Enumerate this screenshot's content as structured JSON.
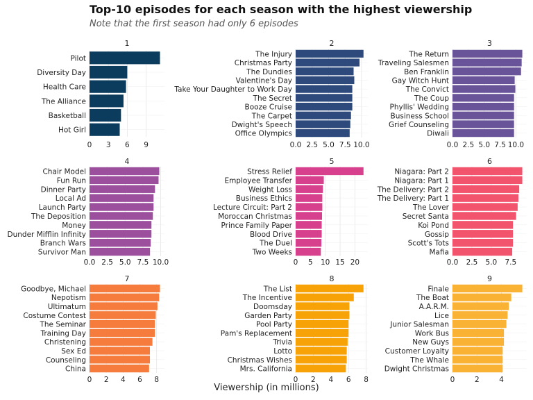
{
  "chart_data": {
    "type": "bar",
    "title": "Top-10 episodes for each season with the highest viewership",
    "subtitle": "Note that the first season had only 6 episodes",
    "xlabel": "Viewership (in millions)",
    "panels": [
      {
        "season": "1",
        "color": "#0b3c5d",
        "xlim": [
          0,
          11.2
        ],
        "ticks": [
          0,
          3,
          6,
          9
        ],
        "tick_labels": [
          "0",
          "3",
          "6",
          "9"
        ],
        "categories": [
          "Pilot",
          "Diversity Day",
          "Health Care",
          "The Alliance",
          "Basketball",
          "Hot Girl"
        ],
        "values": [
          11.2,
          6.0,
          5.8,
          5.4,
          5.0,
          4.8
        ]
      },
      {
        "season": "2",
        "color": "#2e4a7d",
        "xlim": [
          0,
          10.3
        ],
        "ticks": [
          0,
          2.5,
          5,
          7.5,
          10
        ],
        "tick_labels": [
          "0.0",
          "2.5",
          "5.0",
          "7.5",
          "10.0"
        ],
        "categories": [
          "The Injury",
          "Christmas Party",
          "The Dundies",
          "Valentine's Day",
          "Take Your Daughter to Work Day",
          "The Secret",
          "Booze Cruise",
          "The Carpet",
          "Dwight's Speech",
          "Office Olympics"
        ],
        "values": [
          10.3,
          9.7,
          8.8,
          8.9,
          8.6,
          8.6,
          8.6,
          8.4,
          8.3,
          8.2
        ]
      },
      {
        "season": "3",
        "color": "#6a5499",
        "xlim": [
          0,
          11.0
        ],
        "ticks": [
          0,
          2.5,
          5,
          7.5,
          10
        ],
        "tick_labels": [
          "0.0",
          "2.5",
          "5.0",
          "7.5",
          "10.0"
        ],
        "categories": [
          "The Return",
          "Traveling Salesmen",
          "Ben Franklin",
          "Gay Witch Hunt",
          "The Convict",
          "The Coup",
          "Phyllis' Wedding",
          "Business School",
          "Grief Counseling",
          "Diwali"
        ],
        "values": [
          11.0,
          10.9,
          10.8,
          9.8,
          9.9,
          9.7,
          9.7,
          9.7,
          9.7,
          9.7
        ]
      },
      {
        "season": "4",
        "color": "#9b4f9d",
        "xlim": [
          0,
          9.9
        ],
        "ticks": [
          0,
          2.5,
          5,
          7.5,
          10
        ],
        "tick_labels": [
          "0.0",
          "2.5",
          "5.0",
          "7.5",
          "10.0"
        ],
        "categories": [
          "Chair Model",
          "Fun Run",
          "Dinner Party",
          "Local Ad",
          "Launch Party",
          "The Deposition",
          "Money",
          "Dunder Mifflin Infinity",
          "Branch Wars",
          "Survivor Man"
        ],
        "values": [
          9.8,
          9.7,
          9.2,
          9.0,
          9.0,
          8.9,
          8.7,
          8.7,
          8.6,
          8.5
        ]
      },
      {
        "season": "5",
        "color": "#d6408c",
        "xlim": [
          0,
          22.9
        ],
        "ticks": [
          0,
          5,
          10,
          15,
          20
        ],
        "tick_labels": [
          "0",
          "5",
          "10",
          "15",
          "20"
        ],
        "categories": [
          "Stress Relief",
          "Employee Transfer",
          "Weight Loss",
          "Business Ethics",
          "Lecture Circuit: Part 2",
          "Moroccan Christmas",
          "Prince Family Paper",
          "Blood Drive",
          "The Duel",
          "Two Weeks"
        ],
        "values": [
          22.9,
          9.5,
          9.2,
          9.0,
          9.0,
          8.9,
          8.8,
          8.8,
          8.7,
          8.5
        ]
      },
      {
        "season": "6",
        "color": "#f2546e",
        "xlim": [
          0,
          9.0
        ],
        "ticks": [
          0,
          2.5,
          5,
          7.5
        ],
        "tick_labels": [
          "0.0",
          "2.5",
          "5.0",
          "7.5"
        ],
        "categories": [
          "Niagara: Part 2",
          "Niagara: Part 1",
          "The Delivery: Part 2",
          "The Delivery: Part 1",
          "The Lover",
          "Secret Santa",
          "Koi Pond",
          "Gossip",
          "Scott's Tots",
          "Mafia"
        ],
        "values": [
          9.0,
          9.0,
          8.6,
          8.5,
          8.4,
          8.2,
          7.8,
          7.8,
          7.8,
          7.7
        ]
      },
      {
        "season": "7",
        "color": "#f57c3d",
        "xlim": [
          0,
          8.4
        ],
        "ticks": [
          0,
          2,
          4,
          6,
          8
        ],
        "tick_labels": [
          "0",
          "2",
          "4",
          "6",
          "8"
        ],
        "categories": [
          "Goodbye, Michael",
          "Nepotism",
          "Ultimatum",
          "Costume Contest",
          "The Seminar",
          "Training Day",
          "Christening",
          "Sex Ed",
          "Counseling",
          "China"
        ],
        "values": [
          8.4,
          8.3,
          8.1,
          7.9,
          7.8,
          7.8,
          7.5,
          7.2,
          7.2,
          7.1
        ]
      },
      {
        "season": "8",
        "color": "#f7a308",
        "xlim": [
          0,
          7.7
        ],
        "ticks": [
          0,
          2,
          4,
          6,
          8
        ],
        "tick_labels": [
          "0",
          "2",
          "4",
          "6",
          "8"
        ],
        "categories": [
          "The List",
          "The Incentive",
          "Doomsday",
          "Garden Party",
          "Pool Party",
          "Pam's Replacement",
          "Trivia",
          "Lotto",
          "Christmas Wishes",
          "Mrs. California"
        ],
        "values": [
          7.7,
          6.6,
          6.1,
          6.1,
          6.0,
          6.0,
          5.9,
          5.8,
          5.8,
          5.7
        ]
      },
      {
        "season": "9",
        "color": "#f9b233",
        "xlim": [
          0,
          5.7
        ],
        "ticks": [
          0,
          2,
          4
        ],
        "tick_labels": [
          "0",
          "2",
          "4"
        ],
        "categories": [
          "Finale",
          "The Boat",
          "A.A.R.M.",
          "Lice",
          "Junior Salesman",
          "Work Bus",
          "New Guys",
          "Customer Loyalty",
          "The Whale",
          "Dwight Christmas"
        ],
        "values": [
          5.7,
          4.8,
          4.6,
          4.5,
          4.4,
          4.2,
          4.2,
          4.1,
          4.1,
          4.1
        ]
      }
    ]
  }
}
